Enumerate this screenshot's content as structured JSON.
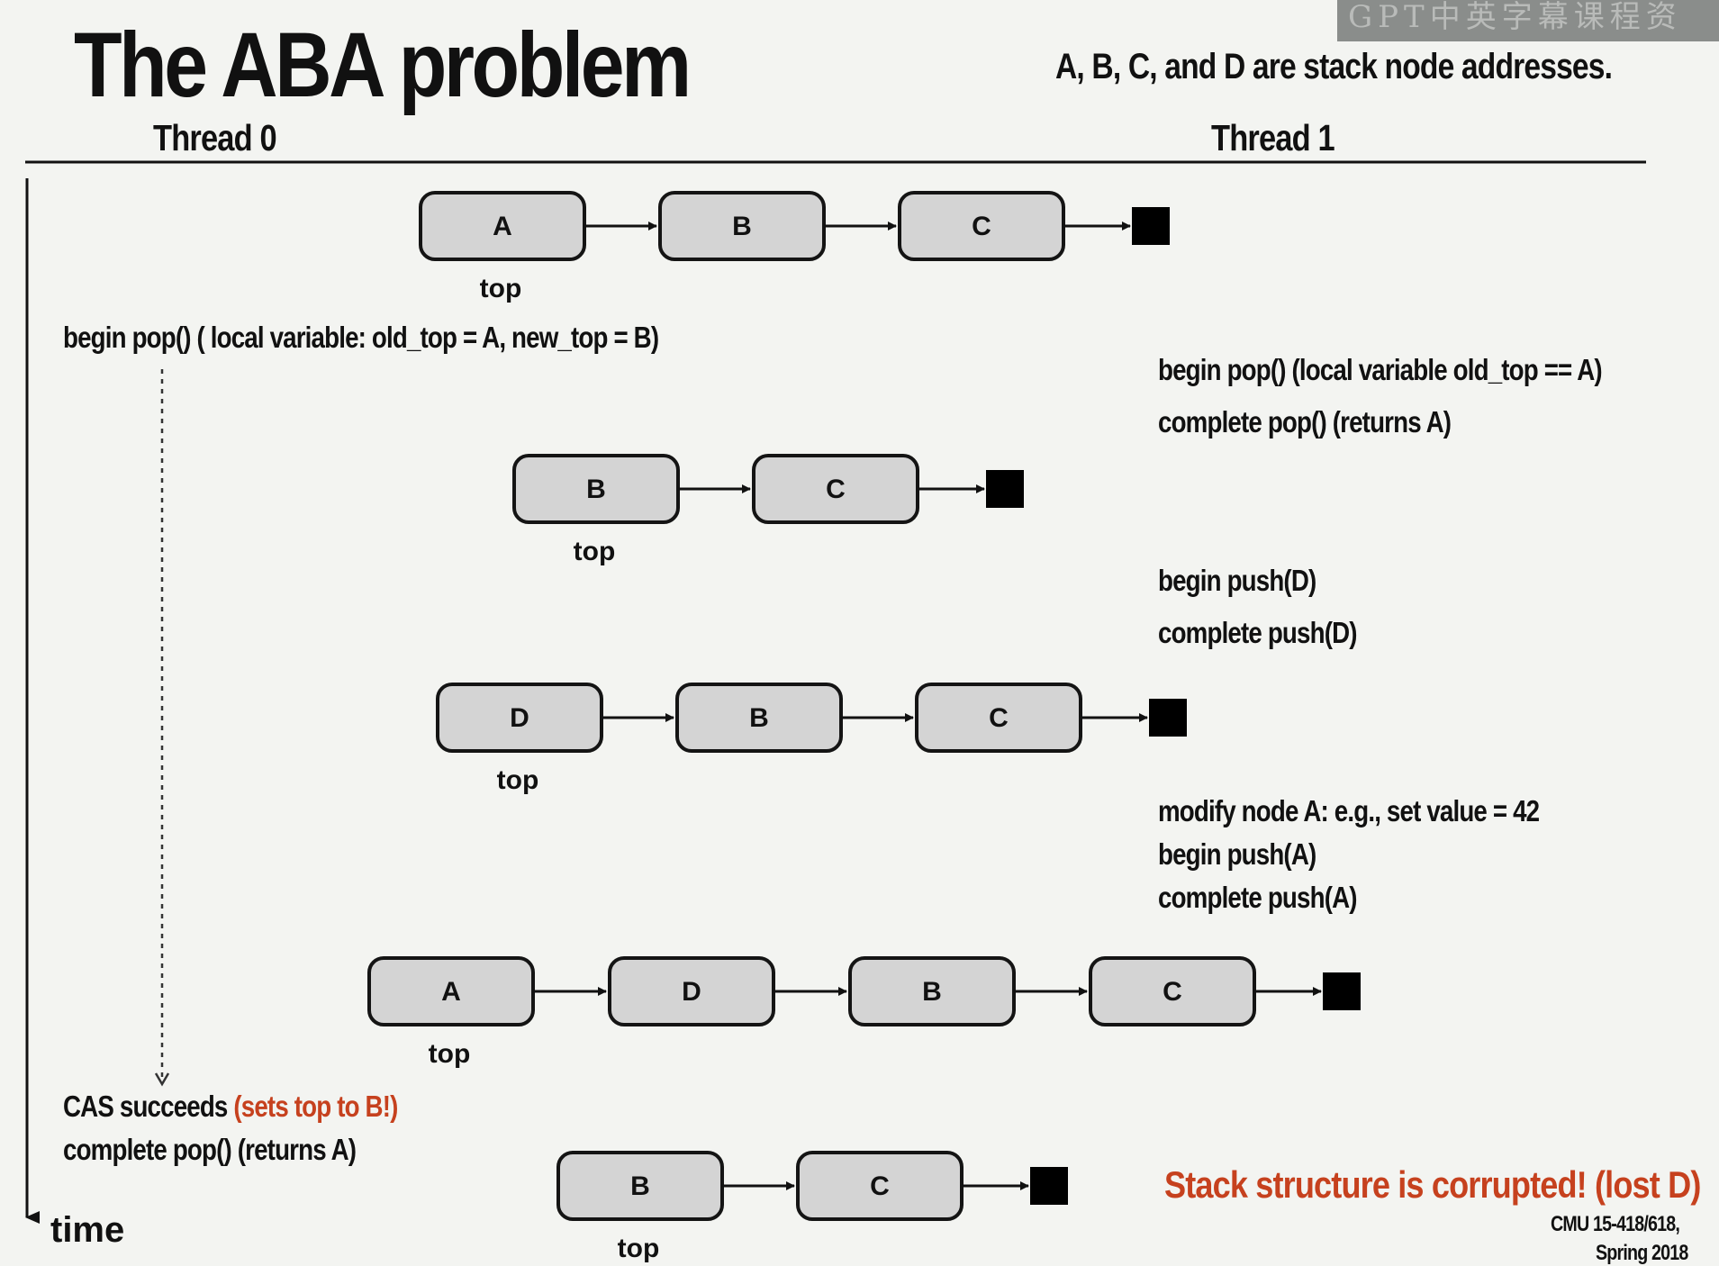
{
  "title": "The ABA problem",
  "note": "A, B, C, and D are stack node addresses.",
  "watermark": "GPT中英字幕课程资",
  "columns": {
    "thread0": "Thread 0",
    "thread1": "Thread 1"
  },
  "thread0_steps": {
    "begin_pop": "begin pop() ( local variable: old_top = A, new_top = B)",
    "cas_prefix": "CAS succeeds ",
    "cas_highlight": "(sets top to B!)",
    "complete_pop": "complete pop()  (returns A)"
  },
  "thread1_steps": {
    "begin_pop": "begin pop()  (local variable old_top == A)",
    "complete_pop": "complete pop()  (returns A)",
    "begin_push_d": "begin push(D)",
    "complete_push_d": "complete push(D)",
    "modify_a": "modify node A: e.g., set value = 42",
    "begin_push_a": "begin push(A)",
    "complete_push_a": "complete push(A)"
  },
  "time_label": "time",
  "conclusion": "Stack structure is corrupted! (lost D)",
  "credit": {
    "line1": "CMU 15-418/618,",
    "line2": "Spring 2018"
  },
  "stacks": [
    {
      "nodes": [
        "A",
        "B",
        "C"
      ],
      "top_label": "top"
    },
    {
      "nodes": [
        "B",
        "C"
      ],
      "top_label": "top"
    },
    {
      "nodes": [
        "D",
        "B",
        "C"
      ],
      "top_label": "top"
    },
    {
      "nodes": [
        "A",
        "D",
        "B",
        "C"
      ],
      "top_label": "top"
    },
    {
      "nodes": [
        "B",
        "C"
      ],
      "top_label": "top"
    }
  ],
  "colors": {
    "highlight": "#c6411e",
    "node_fill": "#d4d4d4",
    "terminal": "#000000"
  }
}
